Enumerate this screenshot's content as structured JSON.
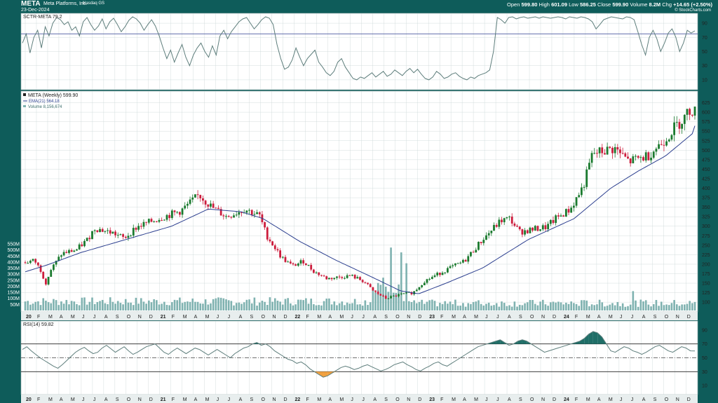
{
  "header": {
    "ticker": "META",
    "company": "Meta Platforms, Inc.",
    "exchange": "Nasdaq GS",
    "date": "23-Dec-2024",
    "watermark": "© StockCharts.com",
    "open_label": "Open",
    "open": "599.80",
    "high_label": "High",
    "high": "601.09",
    "low_label": "Low",
    "low": "586.25",
    "close_label": "Close",
    "close": "599.90",
    "volume_label": "Volume",
    "volume": "8.2M",
    "chg_label": "Chg",
    "chg": "+14.65 (+2.50%)"
  },
  "colors": {
    "frame": "#0e5c5a",
    "panel_bg": "#ffffff",
    "up_candle": "#1a7a2e",
    "down_candle": "#cc1c3c",
    "line": "#5e7e7c",
    "volume_bar": "#7fb2b0",
    "ema": "#2c3f8f",
    "overbought_fill": "#1f6e67",
    "oversold_fill": "#f0a040",
    "grid": "#c9d6d5"
  },
  "chart_data": [
    {
      "type": "line",
      "name": "sctr",
      "legend": "SCTR-META 79.2",
      "ylim": [
        0,
        100
      ],
      "reference_line": 75,
      "yticks": [
        "90",
        "70",
        "50",
        "30",
        "10"
      ],
      "ytick_values": [
        90,
        70,
        50,
        30,
        10
      ],
      "values": [
        62,
        75,
        48,
        70,
        80,
        55,
        85,
        72,
        90,
        98,
        95,
        88,
        92,
        80,
        85,
        72,
        92,
        98,
        88,
        80,
        86,
        96,
        82,
        92,
        97,
        88,
        78,
        85,
        94,
        99,
        96,
        90,
        80,
        88,
        95,
        86,
        72,
        55,
        40,
        52,
        35,
        48,
        60,
        42,
        30,
        45,
        55,
        62,
        50,
        42,
        58,
        45,
        72,
        80,
        68,
        78,
        85,
        92,
        96,
        98,
        90,
        82,
        88,
        95,
        99,
        97,
        88,
        60,
        40,
        25,
        28,
        38,
        55,
        42,
        30,
        40,
        46,
        52,
        35,
        28,
        20,
        16,
        22,
        35,
        40,
        28,
        20,
        12,
        10,
        14,
        12,
        16,
        20,
        14,
        18,
        22,
        15,
        18,
        24,
        20,
        16,
        22,
        26,
        20,
        25,
        18,
        12,
        10,
        14,
        22,
        18,
        12,
        14,
        18,
        20,
        15,
        12,
        10,
        14,
        12,
        16,
        18,
        20,
        24,
        50,
        98,
        95,
        90,
        98,
        99,
        96,
        98,
        99,
        97,
        98,
        99,
        97,
        99,
        98,
        97,
        98,
        99,
        98,
        96,
        99,
        98,
        97,
        99,
        98,
        96,
        92,
        82,
        88,
        95,
        97,
        99,
        98,
        97,
        96,
        99,
        98,
        95,
        78,
        60,
        45,
        70,
        80,
        68,
        50,
        62,
        76,
        82,
        70,
        50,
        62,
        80,
        76,
        79.2
      ]
    },
    {
      "type": "candlestick",
      "name": "price",
      "legend": "META (Weekly) 599.90",
      "ema_legend": "EMA(21) 564.18",
      "volume_legend": "Volume 8,156,674",
      "ylim": [
        80,
        650
      ],
      "yticks": [
        "625",
        "600",
        "575",
        "550",
        "525",
        "500",
        "475",
        "450",
        "425",
        "400",
        "375",
        "350",
        "325",
        "300",
        "275",
        "250",
        "225",
        "200",
        "175",
        "150",
        "125",
        "100"
      ],
      "ytick_values": [
        625,
        600,
        575,
        550,
        525,
        500,
        475,
        450,
        425,
        400,
        375,
        350,
        325,
        300,
        275,
        250,
        225,
        200,
        175,
        150,
        125,
        100
      ],
      "anchors": [
        [
          0,
          205
        ],
        [
          5,
          210
        ],
        [
          9,
          180
        ],
        [
          11,
          148
        ],
        [
          14,
          185
        ],
        [
          20,
          228
        ],
        [
          28,
          238
        ],
        [
          34,
          265
        ],
        [
          38,
          295
        ],
        [
          48,
          282
        ],
        [
          54,
          268
        ],
        [
          61,
          298
        ],
        [
          74,
          322
        ],
        [
          85,
          340
        ],
        [
          95,
          382
        ],
        [
          102,
          350
        ],
        [
          110,
          325
        ],
        [
          120,
          345
        ],
        [
          128,
          328
        ],
        [
          132,
          275
        ],
        [
          140,
          218
        ],
        [
          146,
          195
        ],
        [
          152,
          208
        ],
        [
          158,
          180
        ],
        [
          165,
          162
        ],
        [
          178,
          170
        ],
        [
          185,
          155
        ],
        [
          190,
          130
        ],
        [
          197,
          110
        ],
        [
          205,
          120
        ],
        [
          212,
          125
        ],
        [
          218,
          155
        ],
        [
          230,
          185
        ],
        [
          240,
          208
        ],
        [
          250,
          265
        ],
        [
          260,
          315
        ],
        [
          265,
          320
        ],
        [
          270,
          285
        ],
        [
          285,
          298
        ],
        [
          290,
          320
        ],
        [
          298,
          345
        ],
        [
          305,
          405
        ],
        [
          310,
          490
        ],
        [
          322,
          505
        ],
        [
          330,
          470
        ],
        [
          340,
          485
        ],
        [
          348,
          520
        ],
        [
          355,
          560
        ],
        [
          360,
          585
        ],
        [
          364,
          610
        ],
        [
          366,
          600
        ]
      ],
      "ema_anchors": [
        [
          0,
          180
        ],
        [
          12,
          198
        ],
        [
          30,
          230
        ],
        [
          55,
          265
        ],
        [
          80,
          300
        ],
        [
          100,
          345
        ],
        [
          118,
          338
        ],
        [
          130,
          320
        ],
        [
          150,
          260
        ],
        [
          170,
          210
        ],
        [
          190,
          165
        ],
        [
          205,
          130
        ],
        [
          215,
          122
        ],
        [
          230,
          150
        ],
        [
          250,
          190
        ],
        [
          275,
          265
        ],
        [
          300,
          320
        ],
        [
          320,
          400
        ],
        [
          335,
          445
        ],
        [
          350,
          485
        ],
        [
          365,
          545
        ],
        [
          366,
          564.18
        ]
      ]
    },
    {
      "type": "bar",
      "name": "volume",
      "ymax": 550,
      "yticks": [
        "550M",
        "500M",
        "450M",
        "400M",
        "350M",
        "300M",
        "250M",
        "200M",
        "150M",
        "100M",
        "50M"
      ],
      "ytick_values": [
        550,
        500,
        450,
        400,
        350,
        300,
        250,
        200,
        150,
        100,
        50
      ]
    },
    {
      "type": "line",
      "name": "rsi",
      "legend": "RSI(14) 59.82",
      "ylim": [
        0,
        100
      ],
      "reference_lines": [
        70,
        50,
        30
      ],
      "yticks": [
        "90",
        "70",
        "50",
        "30",
        "10"
      ],
      "ytick_values": [
        90,
        70,
        50,
        30,
        10
      ],
      "values": [
        62,
        66,
        60,
        55,
        50,
        46,
        42,
        38,
        35,
        40,
        46,
        52,
        58,
        62,
        65,
        60,
        56,
        58,
        64,
        68,
        63,
        58,
        62,
        66,
        60,
        55,
        58,
        62,
        66,
        68,
        70,
        64,
        58,
        55,
        60,
        64,
        60,
        56,
        60,
        64,
        62,
        58,
        54,
        58,
        62,
        58,
        54,
        50,
        56,
        60,
        64,
        66,
        70,
        72,
        68,
        70,
        66,
        60,
        56,
        52,
        48,
        46,
        42,
        44,
        40,
        34,
        30,
        26,
        22,
        24,
        28,
        32,
        36,
        38,
        36,
        33,
        35,
        38,
        40,
        37,
        34,
        31,
        33,
        36,
        40,
        42,
        44,
        40,
        37,
        33,
        31,
        35,
        38,
        42,
        44,
        40,
        38,
        42,
        46,
        50,
        54,
        58,
        62,
        66,
        68,
        70,
        72,
        74,
        76,
        72,
        68,
        70,
        74,
        76,
        74,
        70,
        66,
        62,
        58,
        60,
        62,
        64,
        66,
        68,
        70,
        72,
        74,
        78,
        84,
        88,
        86,
        80,
        70,
        60,
        58,
        62,
        66,
        64,
        60,
        58,
        55,
        58,
        62,
        66,
        68,
        64,
        60,
        58,
        62,
        66,
        64,
        60,
        59.82
      ],
      "annotation_fill_labels": [
        "overbought",
        "oversold"
      ]
    }
  ],
  "xaxis": {
    "labels": [
      "20",
      "F",
      "M",
      "A",
      "M",
      "J",
      "J",
      "A",
      "S",
      "O",
      "N",
      "D",
      "21",
      "F",
      "M",
      "A",
      "M",
      "J",
      "J",
      "A",
      "S",
      "O",
      "N",
      "D",
      "22",
      "F",
      "M",
      "A",
      "M",
      "J",
      "J",
      "A",
      "S",
      "O",
      "N",
      "D",
      "23",
      "F",
      "M",
      "A",
      "M",
      "J",
      "J",
      "A",
      "S",
      "O",
      "N",
      "D",
      "24",
      "F",
      "M",
      "A",
      "M",
      "J",
      "J",
      "A",
      "S",
      "O",
      "N",
      "D"
    ],
    "bold_labels": [
      "20",
      "21",
      "22",
      "23",
      "24"
    ]
  }
}
